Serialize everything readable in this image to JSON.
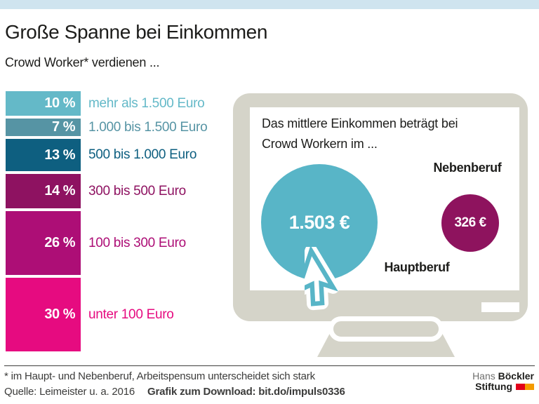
{
  "topbar_color": "#cfe4ef",
  "header": {
    "title": "Große Spanne bei Einkommen",
    "subtitle": "Crowd Worker* verdienen ..."
  },
  "chart_data": {
    "type": "bar",
    "title": "Große Spanne bei Einkommen",
    "subtitle": "Crowd Worker* verdienen ...",
    "unit": "%",
    "orientation": "vertical-stack",
    "categories": [
      "mehr als 1.500 Euro",
      "1.000 bis 1.500 Euro",
      "500 bis 1.000 Euro",
      "300 bis 500 Euro",
      "100 bis 300 Euro",
      "unter 100 Euro"
    ],
    "values": [
      10,
      7,
      13,
      14,
      26,
      30
    ],
    "colors": [
      "#64b9c8",
      "#5694a4",
      "#0e5f80",
      "#8e1261",
      "#ad0e76",
      "#e60b80"
    ],
    "secondary": {
      "type": "bubble",
      "intro": "Das mittlere Einkommen beträgt bei Crowd Workern im ...",
      "bubbles": [
        {
          "label": "Hauptberuf",
          "value": 1503,
          "display": "1.503 €",
          "color": "#58b5c7"
        },
        {
          "label": "Nebenberuf",
          "value": 326,
          "display": "326 €",
          "color": "#8e135e"
        }
      ]
    }
  },
  "bars": [
    {
      "pct": "10 %",
      "value": 10,
      "label": "mehr als 1.500 Euro",
      "color": "#64b9c8"
    },
    {
      "pct": "7 %",
      "value": 7,
      "label": "1.000 bis 1.500 Euro",
      "color": "#5694a4"
    },
    {
      "pct": "13 %",
      "value": 13,
      "label": "500 bis 1.000 Euro",
      "color": "#0e5f80"
    },
    {
      "pct": "14 %",
      "value": 14,
      "label": "300 bis 500 Euro",
      "color": "#8e1261"
    },
    {
      "pct": "26 %",
      "value": 26,
      "label": "100 bis 300 Euro",
      "color": "#ad0e76"
    },
    {
      "pct": "30 %",
      "value": 30,
      "label": "unter 100 Euro",
      "color": "#e60b80"
    }
  ],
  "monitor": {
    "frame_color": "#d5d4c9",
    "intro_line1": "Das mittlere Einkommen beträgt bei",
    "intro_line2": "Crowd Workern im ...",
    "bubble_main": {
      "display": "1.503 €",
      "color": "#58b5c7",
      "label": "Hauptberuf"
    },
    "bubble_side": {
      "display": "326 €",
      "color": "#8e135e",
      "label": "Nebenberuf"
    },
    "cursor_color": "#58b5c7"
  },
  "footer": {
    "footnote": "* im Haupt- und Nebenberuf, Arbeitspensum unterscheidet sich stark",
    "source": "Quelle: Leimeister u. a. 2016",
    "download": "Grafik zum Download: bit.do/impuls0336"
  },
  "logo": {
    "line1_normal": "Hans",
    "line1_bold": "Böckler",
    "line2_bold": "Stiftung",
    "red": "#e2001a",
    "orange": "#f49b00"
  }
}
